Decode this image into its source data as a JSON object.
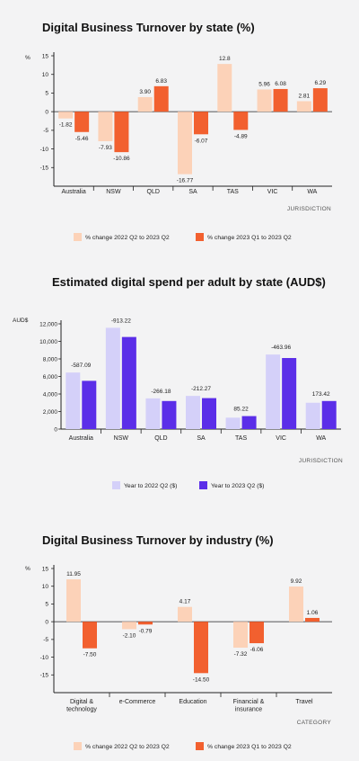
{
  "chart_data": [
    {
      "type": "bar",
      "title": "Digital Business Turnover by state (%)",
      "ylabel": "%",
      "xlabel": "JURISDICTION",
      "categories": [
        "Australia",
        "NSW",
        "QLD",
        "SA",
        "TAS",
        "VIC",
        "WA"
      ],
      "ylim": [
        -20,
        15
      ],
      "yticks": [
        -15,
        -10,
        -5,
        0,
        5,
        10,
        15
      ],
      "series": [
        {
          "name": "% change 2022 Q2 to 2023 Q2",
          "values": [
            -1.82,
            -7.93,
            3.9,
            -16.77,
            12.8,
            5.96,
            2.81
          ],
          "labels": [
            "-1.82",
            "-7.93",
            "3.90",
            "-16.77",
            "12.8",
            "5.96",
            "2.81"
          ],
          "color": "#fcd2b8"
        },
        {
          "name": "% change 2023 Q1 to 2023 Q2",
          "values": [
            -5.46,
            -10.86,
            6.83,
            -6.07,
            -4.89,
            6.08,
            6.29
          ],
          "labels": [
            "-5.46",
            "-10.86",
            "6.83",
            "-6.07",
            "-4.89",
            "6.08",
            "6.29"
          ],
          "color": "#f2602f"
        }
      ],
      "grid": false,
      "legend": "bottom"
    },
    {
      "type": "bar",
      "title": "Estimated digital spend per adult by state (AUD$)",
      "ylabel": "AUD$",
      "xlabel": "JURISDICTION",
      "categories": [
        "Australia",
        "NSW",
        "QLD",
        "SA",
        "TAS",
        "VIC",
        "WA"
      ],
      "ylim": [
        0,
        12000
      ],
      "yticks": [
        0,
        2000,
        4000,
        6000,
        8000,
        10000,
        12000
      ],
      "tick_labels": [
        "0",
        "2,000",
        "4,000",
        "6,000",
        "8,000",
        "10,000",
        "12,000"
      ],
      "series": [
        {
          "name": "Year to 2022 Q2 ($)",
          "values": [
            6450,
            11550,
            3500,
            3780,
            1300,
            8500,
            3000
          ],
          "color": "#d4d0f9"
        },
        {
          "name": "Year to 2023 Q2 ($)",
          "values": [
            5500,
            10500,
            3200,
            3530,
            1480,
            8100,
            3200
          ],
          "color": "#5b2ee8"
        }
      ],
      "annotations": [
        "-587.09",
        "-913.22",
        "-266.18",
        "-212.27",
        "85.22",
        "-463.96",
        "173.42"
      ],
      "grid": false,
      "legend": "bottom"
    },
    {
      "type": "bar",
      "title": "Digital Business Turnover by industry (%)",
      "ylabel": "%",
      "xlabel": "CATEGORY",
      "categories": [
        "Digital & technology",
        "e-Commerce",
        "Education",
        "Financial & insurance",
        "Travel"
      ],
      "category_lines": [
        [
          "Digital &",
          "technology"
        ],
        [
          "e-Commerce"
        ],
        [
          "Education"
        ],
        [
          "Financial &",
          "insurance"
        ],
        [
          "Travel"
        ]
      ],
      "ylim": [
        -20,
        15
      ],
      "yticks": [
        -15,
        -10,
        -5,
        0,
        5,
        10,
        15
      ],
      "series": [
        {
          "name": "% change 2022 Q2 to 2023 Q2",
          "values": [
            11.95,
            -2.1,
            4.17,
            -7.32,
            9.92
          ],
          "labels": [
            "11.95",
            "-2.10",
            "4.17",
            "-7.32",
            "9.92"
          ],
          "color": "#fcd2b8"
        },
        {
          "name": "% change 2023 Q1 to 2023 Q2",
          "values": [
            -7.5,
            -0.79,
            -14.5,
            -6.06,
            1.06
          ],
          "labels": [
            "-7.50",
            "-0.79",
            "-14.50",
            "-6.06",
            "1.06"
          ],
          "color": "#f2602f"
        }
      ],
      "grid": false,
      "legend": "bottom"
    }
  ]
}
